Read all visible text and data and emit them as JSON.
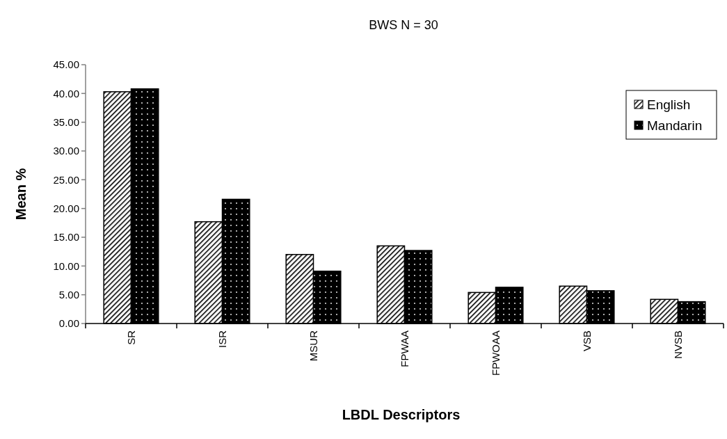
{
  "chart_data": {
    "type": "bar",
    "title": "BWS N = 30",
    "xlabel": "LBDL Descriptors",
    "ylabel": "Mean %",
    "categories": [
      "SR",
      "ISR",
      "MSUR",
      "FPWAA",
      "FPWOAA",
      "VSB",
      "NVSB"
    ],
    "series": [
      {
        "name": "English",
        "color": "#000000",
        "values": [
          40.3,
          17.7,
          12.0,
          13.5,
          5.4,
          6.5,
          4.2
        ]
      },
      {
        "name": "Mandarin",
        "color": "#000000",
        "values": [
          40.8,
          21.6,
          9.1,
          12.7,
          6.3,
          5.7,
          3.8
        ]
      }
    ],
    "ylim": [
      0,
      45
    ],
    "yticks": [
      {
        "value": 0,
        "label": "0.00"
      },
      {
        "value": 5,
        "label": "5.00"
      },
      {
        "value": 10,
        "label": "10.00"
      },
      {
        "value": 15,
        "label": "15.00"
      },
      {
        "value": 20,
        "label": "20.00"
      },
      {
        "value": 25,
        "label": "25.00"
      },
      {
        "value": 30,
        "label": "30.00"
      },
      {
        "value": 35,
        "label": "35.00"
      },
      {
        "value": 40,
        "label": "40.00"
      },
      {
        "value": 45,
        "label": "45.00"
      }
    ],
    "grid": false,
    "legend": "top right"
  }
}
